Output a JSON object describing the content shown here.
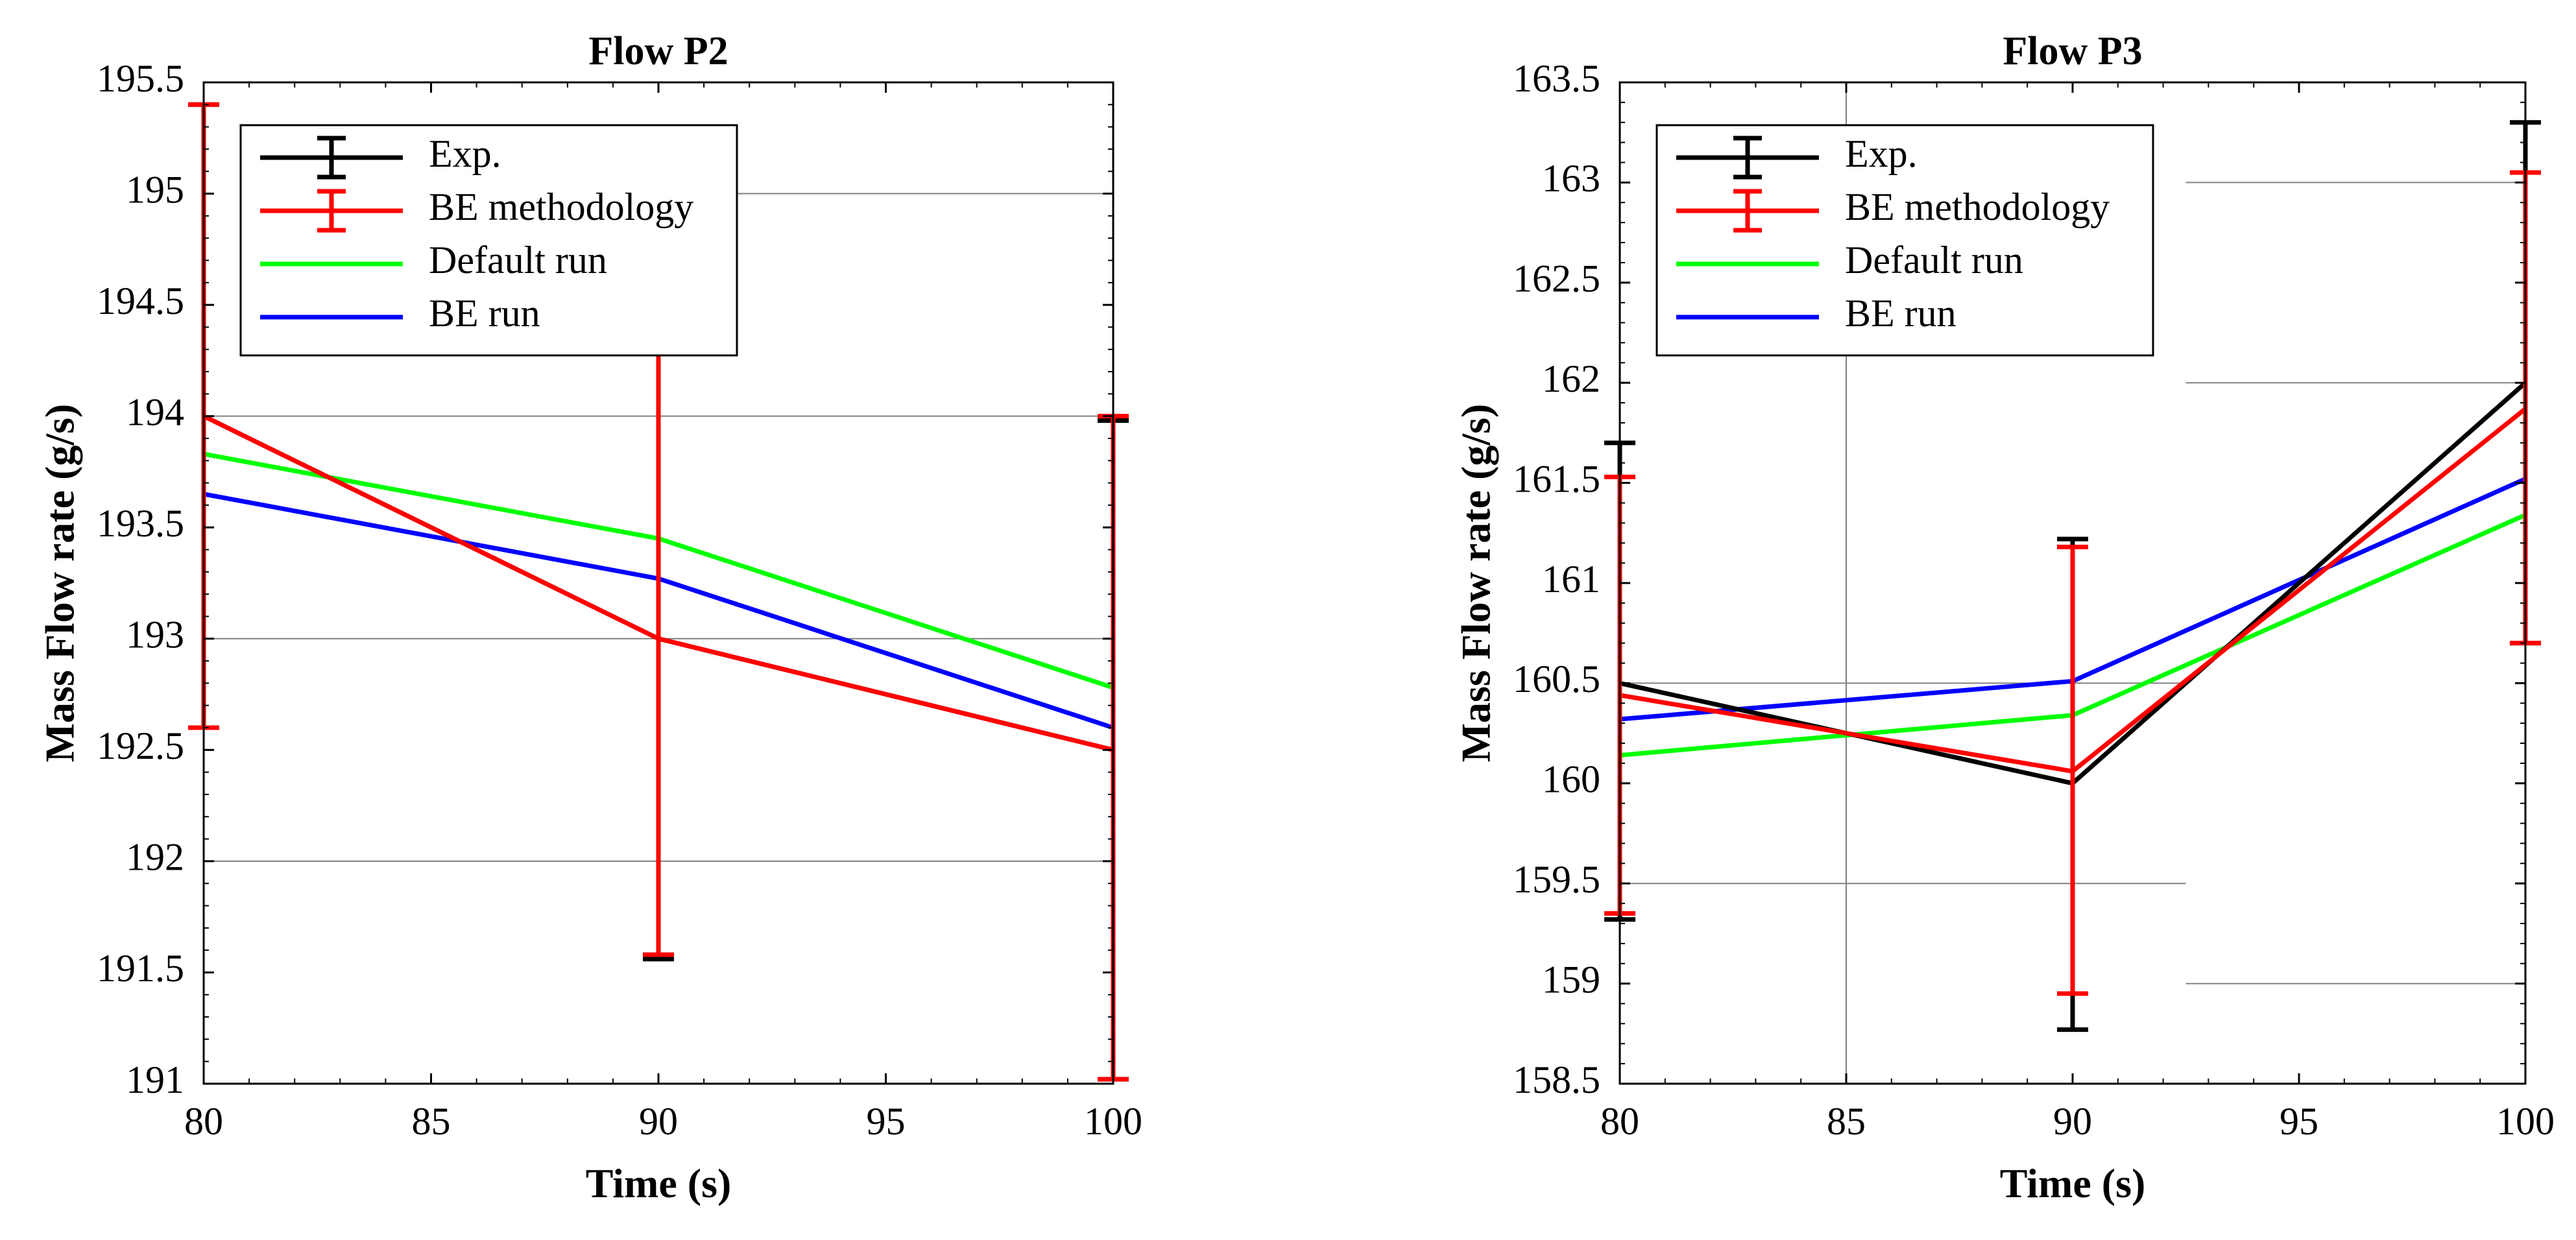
{
  "chart_data": [
    {
      "type": "line",
      "title": "Flow P2",
      "xlabel": "Time (s)",
      "ylabel": "Mass Flow rate (g/s)",
      "xlim": [
        80,
        100
      ],
      "ylim": [
        191,
        195.5
      ],
      "xticks": [
        80,
        85,
        90,
        95,
        100
      ],
      "xtick_labels": [
        "80",
        "85",
        "90",
        "95",
        "100"
      ],
      "yticks": [
        191,
        191.5,
        192,
        192.5,
        193,
        193.5,
        194,
        194.5,
        195,
        195.5
      ],
      "ytick_labels": [
        "191",
        "191.5",
        "192",
        "192.5",
        "193",
        "193.5",
        "194",
        "194.5",
        "195",
        "195.5"
      ],
      "grid": {
        "horizontal": [
          {
            "y": 192,
            "x": [
              80,
              100
            ]
          },
          {
            "y": 193,
            "x": [
              80,
              100
            ]
          },
          {
            "y": 194,
            "x": [
              80,
              100
            ]
          },
          {
            "y": 195,
            "x": [
              90,
              100
            ]
          }
        ],
        "vertical": []
      },
      "legend_location": "top-left",
      "series": [
        {
          "name": "Exp.",
          "color": "#000000",
          "x": [
            80,
            90,
            100
          ],
          "y": [
            194.0,
            193.0,
            192.5
          ],
          "err_low": [
            192.6,
            191.56,
            191.02
          ],
          "err_high": [
            195.4,
            194.42,
            193.98
          ]
        },
        {
          "name": "BE methodology",
          "color": "#ff0000",
          "x": [
            80,
            90,
            100
          ],
          "y": [
            194.0,
            193.0,
            192.5
          ],
          "err_low": [
            192.6,
            191.58,
            191.02
          ],
          "err_high": [
            195.4,
            194.42,
            194.0
          ]
        },
        {
          "name": "Default run",
          "color": "#00ff00",
          "x": [
            80,
            90,
            100
          ],
          "y": [
            193.83,
            193.45,
            192.78
          ]
        },
        {
          "name": "BE run",
          "color": "#0000ff",
          "x": [
            80,
            90,
            100
          ],
          "y": [
            193.65,
            193.27,
            192.6
          ]
        }
      ]
    },
    {
      "type": "line",
      "title": "Flow P3",
      "xlabel": "Time (s)",
      "ylabel": "Mass Flow rate (g/s)",
      "xlim": [
        80,
        100
      ],
      "ylim": [
        158.5,
        163.5
      ],
      "xticks": [
        80,
        85,
        90,
        95,
        100
      ],
      "xtick_labels": [
        "80",
        "85",
        "90",
        "95",
        "100"
      ],
      "yticks": [
        158.5,
        159,
        159.5,
        160,
        160.5,
        161,
        161.5,
        162,
        162.5,
        163,
        163.5
      ],
      "ytick_labels": [
        "158.5",
        "159",
        "159.5",
        "160",
        "160.5",
        "161",
        "161.5",
        "162",
        "162.5",
        "163",
        "163.5"
      ],
      "grid": {
        "horizontal": [
          {
            "y": 159,
            "x": [
              92.5,
              100
            ]
          },
          {
            "y": 159.5,
            "x": [
              80,
              92.5
            ]
          },
          {
            "y": 160.5,
            "x": [
              80,
              92.5
            ]
          },
          {
            "y": 162,
            "x": [
              92.5,
              100
            ]
          },
          {
            "y": 163,
            "x": [
              92.5,
              100
            ]
          }
        ],
        "vertical": [
          85
        ]
      },
      "legend_location": "top-left",
      "series": [
        {
          "name": "Exp.",
          "color": "#000000",
          "x": [
            80,
            90,
            100
          ],
          "y": [
            160.5,
            160.0,
            162.0
          ],
          "err_low": [
            159.32,
            158.77,
            160.7
          ],
          "err_high": [
            161.7,
            161.22,
            163.3
          ]
        },
        {
          "name": "BE methodology",
          "color": "#ff0000",
          "x": [
            80,
            90,
            100
          ],
          "y": [
            160.44,
            160.06,
            161.87
          ],
          "err_low": [
            159.35,
            158.95,
            160.7
          ],
          "err_high": [
            161.53,
            161.18,
            163.05
          ]
        },
        {
          "name": "Default run",
          "color": "#00ff00",
          "x": [
            80,
            90,
            100
          ],
          "y": [
            160.14,
            160.34,
            161.34
          ]
        },
        {
          "name": "BE run",
          "color": "#0000ff",
          "x": [
            80,
            90,
            100
          ],
          "y": [
            160.32,
            160.51,
            161.52
          ]
        }
      ]
    }
  ]
}
